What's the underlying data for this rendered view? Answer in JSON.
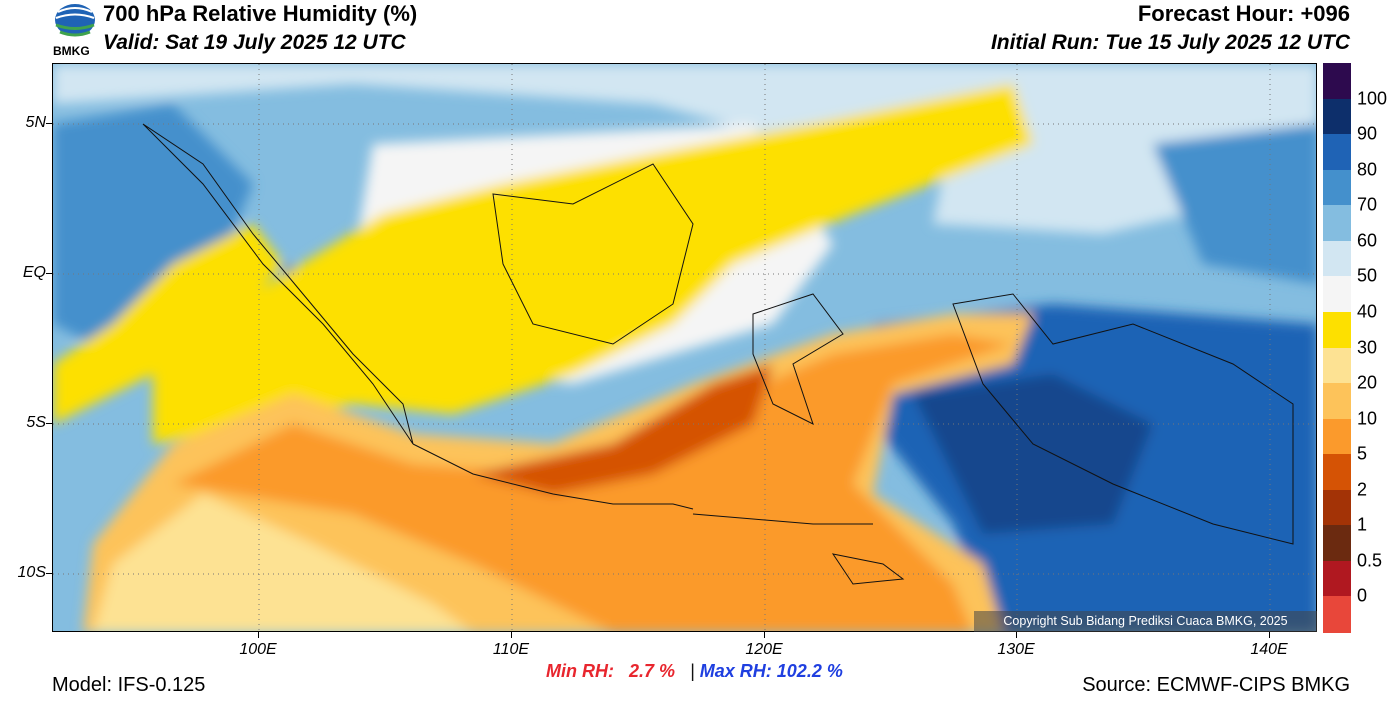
{
  "header": {
    "logo_text": "BMKG",
    "title": "700 hPa Relative Humidity (%)",
    "valid": "Valid: Sat 19 July 2025 12 UTC",
    "forecast_hour": "Forecast Hour: +096",
    "initial_run": "Initial Run: Tue 15 July 2025 12 UTC"
  },
  "map": {
    "lat_labels": [
      "5N",
      "EQ",
      "5S",
      "10S"
    ],
    "lon_labels": [
      "100E",
      "110E",
      "120E",
      "130E",
      "140E"
    ],
    "copyright": "Copyright Sub Bidang Prediksi Cuaca BMKG, 2025"
  },
  "colorbar": {
    "labels": [
      "100",
      "90",
      "80",
      "70",
      "60",
      "50",
      "40",
      "30",
      "20",
      "10",
      "5",
      "2",
      "1",
      "0.5",
      "0"
    ],
    "colors": [
      "#2d0a4e",
      "#0d2f6b",
      "#1f63b5",
      "#4490cc",
      "#84bde0",
      "#d2e6f2",
      "#f5f5f5",
      "#fde000",
      "#fde293",
      "#fdc35a",
      "#fb9a2c",
      "#d55305",
      "#a33306",
      "#6b2a10",
      "#b01820",
      "#e8473a"
    ]
  },
  "stats": {
    "min_label": "Min RH:",
    "min_value": "2.7 %",
    "separator": "|",
    "max_label": "Max RH:",
    "max_value": "102.2 %"
  },
  "footer": {
    "model": "Model: IFS-0.125",
    "source": "Source: ECMWF-CIPS BMKG"
  }
}
